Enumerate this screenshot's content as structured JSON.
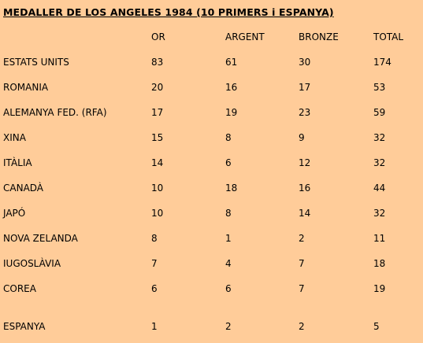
{
  "title": "MEDALLER DE LOS ANGELES 1984 (10 PRIMERS i ESPANYA)",
  "headers": {
    "country": "",
    "gold": "OR",
    "silver": "ARGENT",
    "bronze": "BRONZE",
    "total": "TOTAL"
  },
  "rows": [
    {
      "country": "ESTATS UNITS",
      "gold": "83",
      "silver": "61",
      "bronze": "30",
      "total": "174"
    },
    {
      "country": "ROMANIA",
      "gold": "20",
      "silver": "16",
      "bronze": "17",
      "total": "53"
    },
    {
      "country": "ALEMANYA FED. (RFA)",
      "gold": "17",
      "silver": "19",
      "bronze": "23",
      "total": "59"
    },
    {
      "country": "XINA",
      "gold": "15",
      "silver": "8",
      "bronze": "9",
      "total": "32"
    },
    {
      "country": "ITÀLIA",
      "gold": "14",
      "silver": "6",
      "bronze": "12",
      "total": "32"
    },
    {
      "country": "CANADÀ",
      "gold": "10",
      "silver": "18",
      "bronze": "16",
      "total": "44"
    },
    {
      "country": "JAPÓ",
      "gold": "10",
      "silver": "8",
      "bronze": "14",
      "total": "32"
    },
    {
      "country": "NOVA ZELANDA",
      "gold": "8",
      "silver": "1",
      "bronze": "2",
      "total": "11"
    },
    {
      "country": "IUGOSLÀVIA",
      "gold": "7",
      "silver": "4",
      "bronze": "7",
      "total": "18"
    },
    {
      "country": "COREA",
      "gold": "6",
      "silver": "6",
      "bronze": "7",
      "total": "19"
    }
  ],
  "spain": {
    "country": "ESPANYA",
    "gold": "1",
    "silver": "2",
    "bronze": "2",
    "total": "5"
  },
  "colors": {
    "background": "#ffcc99",
    "text": "#000000"
  }
}
